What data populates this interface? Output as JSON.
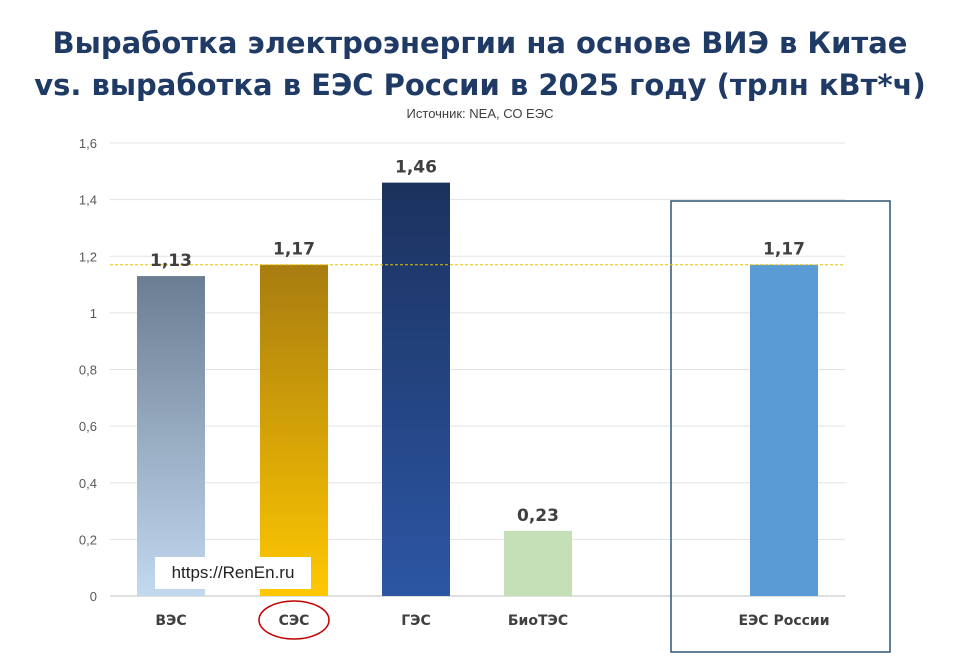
{
  "title_line1": "Выработка электроэнергии на основе ВИЭ в Китае",
  "title_line2": "vs. выработка в ЕЭС России в 2025 году (трлн кВт*ч)",
  "subtitle": "Источник: NEA, СО ЕЭС",
  "watermark": "https://RenEn.ru",
  "chart_data": {
    "type": "bar",
    "title": "Выработка электроэнергии на основе ВИЭ в Китае vs. выработка в ЕЭС России в 2025 году (трлн кВт*ч)",
    "categories": [
      "ВЭС",
      "СЭС",
      "ГЭС",
      "БиоТЭС",
      "ЕЭС России"
    ],
    "values": [
      1.13,
      1.17,
      1.46,
      0.23,
      1.17
    ],
    "value_labels": [
      "1,13",
      "1,17",
      "1,46",
      "0,23",
      "1,17"
    ],
    "bar_colors": [
      [
        "#6b7d92",
        "#c3d9f0"
      ],
      [
        "#a87c10",
        "#ffc800"
      ],
      [
        "#1b325e",
        "#2c56a4"
      ],
      [
        "#c5e0b6",
        "#c5e0b6"
      ],
      [
        "#5b9bd5",
        "#5b9bd5"
      ]
    ],
    "ylim": [
      0,
      1.6
    ],
    "yticks": [
      "0",
      "0,2",
      "0,4",
      "0,6",
      "0,8",
      "1",
      "1,2",
      "1,4",
      "1,6"
    ],
    "xlabel": "",
    "ylabel": "",
    "reference_line": {
      "value": 1.17,
      "color": "#e6c200",
      "style": "dashed"
    },
    "highlighted_category": "ЕЭС России",
    "circled_label": "СЭС",
    "grid": true,
    "legend": "none"
  }
}
